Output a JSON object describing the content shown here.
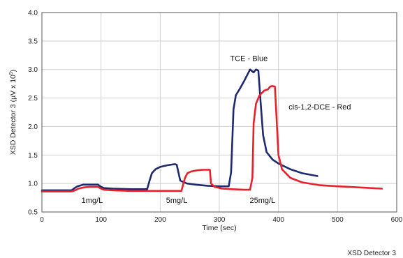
{
  "chart_data": {
    "type": "line",
    "title": "",
    "xlabel": "Time (sec)",
    "ylabel": "XSD Detector 3 (µV x 10",
    "ylabel_exponent": "5",
    "ylabel_close": ")",
    "xlim": [
      0,
      600
    ],
    "ylim": [
      0.5,
      4.0
    ],
    "xticks": [
      "0",
      "100",
      "200",
      "300",
      "400",
      "500",
      "600"
    ],
    "yticks": [
      "0.5",
      "1.0",
      "1.5",
      "2.0",
      "2.5",
      "3.0",
      "3.5",
      "4.0"
    ],
    "grid": true,
    "footer": "XSD Detector 3",
    "annotations": [
      {
        "text": "TCE - Blue",
        "x": 350,
        "y": 3.15
      },
      {
        "text": "cis-1,2-DCE - Red",
        "x": 470,
        "y": 2.3
      },
      {
        "text": "1mg/L",
        "x": 85,
        "y": 0.66
      },
      {
        "text": "5mg/L",
        "x": 228,
        "y": 0.66
      },
      {
        "text": "25mg/L",
        "x": 373,
        "y": 0.66
      }
    ],
    "series": [
      {
        "color": "#1f2a6e",
        "x": [
          0,
          50,
          54,
          60,
          70,
          80,
          95,
          100,
          105,
          120,
          150,
          178,
          182,
          186,
          192,
          200,
          212,
          225,
          228,
          234,
          245,
          260,
          280,
          300,
          316,
          320,
          324,
          328,
          334,
          342,
          348,
          352,
          358,
          362,
          366,
          370,
          374,
          380,
          390,
          400,
          420,
          440,
          466
        ],
        "y": [
          0.88,
          0.88,
          0.91,
          0.95,
          0.98,
          0.98,
          0.98,
          0.94,
          0.92,
          0.91,
          0.9,
          0.9,
          1.05,
          1.18,
          1.25,
          1.29,
          1.32,
          1.34,
          1.33,
          1.05,
          1.0,
          0.98,
          0.96,
          0.95,
          0.95,
          1.2,
          2.3,
          2.55,
          2.65,
          2.8,
          2.92,
          3.0,
          2.95,
          3.0,
          2.98,
          2.4,
          1.85,
          1.55,
          1.42,
          1.35,
          1.25,
          1.18,
          1.13
        ]
      },
      {
        "color": "#e8202a",
        "x": [
          0,
          50,
          56,
          62,
          70,
          80,
          95,
          100,
          105,
          120,
          150,
          200,
          236,
          238,
          242,
          246,
          252,
          262,
          272,
          284,
          286,
          292,
          305,
          320,
          342,
          352,
          356,
          358,
          362,
          368,
          376,
          382,
          386,
          390,
          394,
          396,
          400,
          406,
          420,
          440,
          470,
          500,
          540,
          575
        ],
        "y": [
          0.86,
          0.86,
          0.88,
          0.91,
          0.93,
          0.94,
          0.94,
          0.91,
          0.89,
          0.88,
          0.87,
          0.87,
          0.87,
          0.95,
          1.1,
          1.18,
          1.21,
          1.23,
          1.24,
          1.24,
          1.0,
          0.94,
          0.91,
          0.9,
          0.89,
          0.89,
          1.1,
          2.05,
          2.4,
          2.55,
          2.63,
          2.65,
          2.7,
          2.71,
          2.7,
          2.3,
          1.5,
          1.25,
          1.1,
          1.02,
          0.97,
          0.95,
          0.93,
          0.91
        ]
      }
    ]
  }
}
